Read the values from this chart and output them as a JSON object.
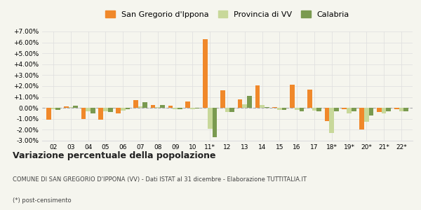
{
  "categories": [
    "02",
    "03",
    "04",
    "05",
    "06",
    "07",
    "08",
    "09",
    "10",
    "11*",
    "12",
    "13",
    "14",
    "15",
    "16",
    "17",
    "18*",
    "19*",
    "20*",
    "21*",
    "22*"
  ],
  "san_gregorio": [
    -1.1,
    0.15,
    -1.0,
    -1.1,
    -0.5,
    0.75,
    0.3,
    0.2,
    0.6,
    6.3,
    1.6,
    0.8,
    2.05,
    0.05,
    2.1,
    1.7,
    -1.2,
    -0.1,
    -2.0,
    -0.4,
    -0.1
  ],
  "provincia_vv": [
    -0.1,
    0.05,
    -0.3,
    -0.3,
    -0.25,
    0.15,
    0.05,
    -0.1,
    -0.1,
    -1.9,
    -0.35,
    0.35,
    0.3,
    -0.2,
    -0.2,
    -0.25,
    -2.3,
    -0.5,
    -1.3,
    -0.5,
    -0.3
  ],
  "calabria": [
    -0.2,
    0.2,
    -0.5,
    -0.4,
    -0.1,
    0.5,
    0.25,
    -0.1,
    -0.05,
    -2.65,
    -0.4,
    1.1,
    0.1,
    -0.15,
    -0.3,
    -0.3,
    -0.3,
    -0.3,
    -0.7,
    -0.3,
    -0.3
  ],
  "color_san_gregorio": "#F0882A",
  "color_provincia": "#C8D89A",
  "color_calabria": "#7A9A50",
  "background_color": "#F5F5EE",
  "grid_color": "#DDDDDD",
  "ylim_min": -3.0,
  "ylim_max": 7.0,
  "yticks": [
    -3.0,
    -2.0,
    -1.0,
    0.0,
    1.0,
    2.0,
    3.0,
    4.0,
    5.0,
    6.0,
    7.0
  ],
  "title": "Variazione percentuale della popolazione",
  "subtitle": "COMUNE DI SAN GREGORIO D'IPPONA (VV) - Dati ISTAT al 31 dicembre - Elaborazione TUTTITALIA.IT",
  "footnote": "(*) post-censimento",
  "legend_labels": [
    "San Gregorio d'Ippona",
    "Provincia di VV",
    "Calabria"
  ]
}
